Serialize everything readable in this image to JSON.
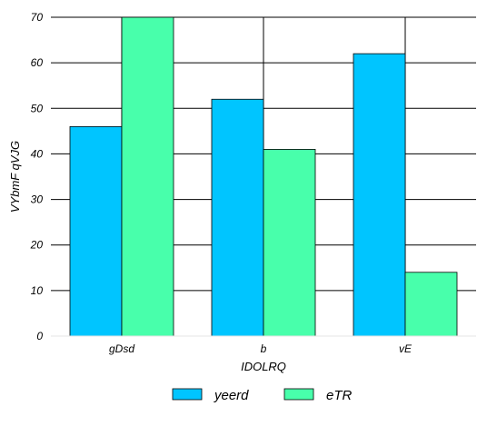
{
  "chart_data": {
    "type": "bar",
    "categories": [
      "gDsd",
      "b",
      "vE"
    ],
    "series": [
      {
        "name": "yeerd",
        "values": [
          46,
          52,
          62
        ],
        "color": "#00c5ff"
      },
      {
        "name": "eTR",
        "values": [
          70,
          41,
          14
        ],
        "color": "#48ffab"
      }
    ],
    "xlabel": "IDOLRQ",
    "ylabel": "VYbmF qVJG",
    "ylim": [
      0,
      70
    ],
    "yticks": [
      0,
      10,
      20,
      30,
      40,
      50,
      60,
      70
    ],
    "grid": {
      "horizontal": true,
      "vertical": true
    },
    "legend": {
      "placement": "bottom-center"
    }
  }
}
